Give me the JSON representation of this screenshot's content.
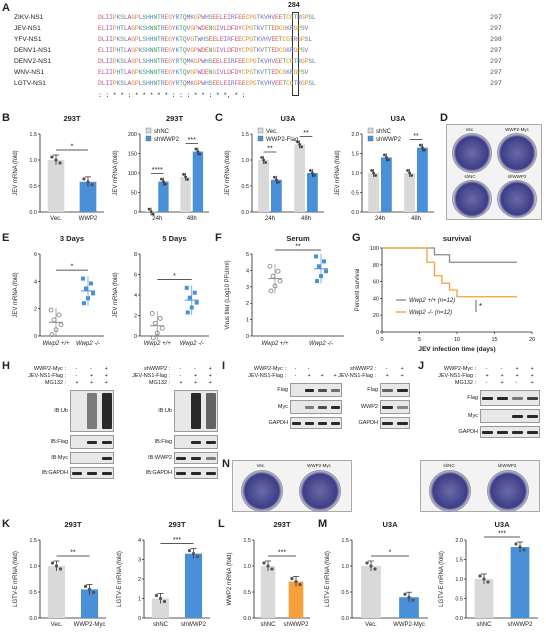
{
  "panel_letters": {
    "A": "A",
    "B": "B",
    "C": "C",
    "D": "D",
    "E": "E",
    "F": "F",
    "G": "G",
    "H": "H",
    "I": "I",
    "J": "J",
    "K": "K",
    "L": "L",
    "M": "M",
    "N": "N"
  },
  "alignment": {
    "position_label": "284",
    "rows": [
      {
        "name": "ZIKV-NS1",
        "seq": "DLIIPKSLAGPLSHHNTREGYRTQMKGPWHSEELEIRFEECPGTKVHVEETCGTRGPSL",
        "num": "297"
      },
      {
        "name": "JEV-NS1",
        "seq": "ELIIPHTLAGPKSHNNTREGYKTQVGPWDENGIVLDFDYCPGTKVTTEDCGKRGPSV",
        "num": "297"
      },
      {
        "name": "YFV-NS1",
        "seq": "DLIIPKSLAGPLSHHNTREGYKTQVGTWHSEELEIRFEECPGTKVHVEETCGTRGPSL",
        "num": "298"
      },
      {
        "name": "DENV1-NS1",
        "seq": "ELIIPHTLAGPKSHNNTREGYKTQVGPWDENGIVLDFDYCPGTKVTTEDCGKRGPSV",
        "num": "297"
      },
      {
        "name": "DENV2-NS1",
        "seq": "DLIIPKSLAGPLSHHNTREGYRTQMKGPWHSEELEIRFEECPGTKVHVEETCGTRGPSL",
        "num": "297"
      },
      {
        "name": "WNV-NS1",
        "seq": "ELIIPHTLAGPKSHNNTREGYKTQVGPWDENGIVLDFDYCPGTKVTTEDCGKRGPSV",
        "num": "297"
      },
      {
        "name": "LGTV-NS1",
        "seq": "DLIIPKSLAGPLSHHNTREGYRTQMKGPWHSEELEIRFEECPGTKVHVEETCGTRGPSL",
        "num": "297"
      }
    ],
    "conservation": ": : * *  : *   *  *    *  *  : :  : *  * : *      *,  * :"
  },
  "colors": {
    "vec": "#d9d9d9",
    "wwp2": "#4a90d9",
    "orange": "#f5a03a",
    "gray_line": "#8a8a8a"
  },
  "charts": {
    "B1": {
      "title": "293T",
      "ylabel": "JEV mRNA (fold)",
      "categories": [
        "Vec.",
        "WWP2"
      ],
      "yticks": [
        "0.0",
        "0.5",
        "1.0",
        "1.5"
      ],
      "sig": "*"
    },
    "B2": {
      "title": "293T",
      "ylabel": "JEV mRNA (fold)",
      "categories": [
        "24h",
        "48h"
      ],
      "yticks": [
        "0",
        "50",
        "100",
        "150",
        "200"
      ],
      "legend": [
        "shNC",
        "shWWP2"
      ],
      "sig": [
        "****",
        "***"
      ]
    },
    "C1": {
      "title": "U3A",
      "ylabel": "JEV mRNA (fold)",
      "categories": [
        "24h",
        "48h"
      ],
      "yticks": [
        "0.0",
        "0.5",
        "1.0",
        "1.5"
      ],
      "legend": [
        "Vec.",
        "WWP2-Flag"
      ],
      "sig": [
        "**",
        "**"
      ]
    },
    "C2": {
      "title": "U3A",
      "ylabel": "JEV mRNA (fold)",
      "categories": [
        "24h",
        "48h"
      ],
      "yticks": [
        "0.0",
        "0.5",
        "1.0",
        "1.5",
        "2.0"
      ],
      "legend": [
        "shNC",
        "shWWP2"
      ],
      "sig": [
        "**"
      ]
    },
    "E1": {
      "title": "3 Days",
      "ylabel": "JEV mRNA (fold)",
      "categories": [
        "Wwp2 +/+",
        "Wwp2 -/-"
      ],
      "yticks": [
        "0",
        "2",
        "4",
        "6"
      ],
      "sig": "*"
    },
    "E2": {
      "title": "5 Days",
      "ylabel": "JEV mRNA (fold)",
      "categories": [
        "Wwp2 +/+",
        "Wwp2 -/-"
      ],
      "yticks": [
        "0",
        "2",
        "4",
        "6",
        "8"
      ],
      "sig": "*"
    },
    "F": {
      "title": "Serum",
      "ylabel": "Virus titer (Log10 PFU/ml)",
      "categories": [
        "Wwp2 +/+",
        "Wwp2 -/-"
      ],
      "yticks": [
        "0",
        "1",
        "2",
        "3",
        "4",
        "5"
      ],
      "sig": "**"
    },
    "G": {
      "title": "survival",
      "ylabel": "Percent survival",
      "xlabel": "JEV infection time (days)",
      "yticks": [
        "0",
        "20",
        "40",
        "60",
        "80",
        "100"
      ],
      "xticks": [
        "0",
        "5",
        "10",
        "15",
        "20"
      ],
      "legend": [
        "Wwp2 +/+ (n=12)",
        "Wwp2 -/- (n=12)"
      ],
      "sig": "*"
    },
    "K1": {
      "title": "293T",
      "ylabel": "LGTV-E mRNA (fold)",
      "categories": [
        "Vec.",
        "WWP2-Myc"
      ],
      "yticks": [
        "0.0",
        "0.5",
        "1.0",
        "1.5"
      ],
      "sig": "**"
    },
    "K2": {
      "title": "293T",
      "ylabel": "LGTV-E mRNA (fold)",
      "categories": [
        "shNC",
        "shWWP2"
      ],
      "yticks": [
        "0",
        "1",
        "2",
        "3",
        "4"
      ],
      "sig": "***"
    },
    "L": {
      "title": "293T",
      "ylabel": "WWP2 mRNA (fold)",
      "categories": [
        "shNC",
        "shWWP2"
      ],
      "yticks": [
        "0.0",
        "0.5",
        "1.0",
        "1.5"
      ],
      "sig": "***"
    },
    "M1": {
      "title": "U3A",
      "ylabel": "LGTV-E mRNA (fold)",
      "categories": [
        "Vec.",
        "WWP2-Myc"
      ],
      "yticks": [
        "0.0",
        "0.5",
        "1.0",
        "1.5"
      ],
      "sig": "*"
    },
    "M2": {
      "title": "U3A",
      "ylabel": "LGTV-E mRNA (fold)",
      "categories": [
        "shNC",
        "shWWP2"
      ],
      "yticks": [
        "0.0",
        "0.5",
        "1.0",
        "1.5",
        "2.0"
      ],
      "sig": "***"
    }
  },
  "chart_data": [
    {
      "type": "bar",
      "title": "293T",
      "ylabel": "JEV mRNA (fold)",
      "categories": [
        "Vec.",
        "WWP2"
      ],
      "values": [
        1.0,
        0.58
      ],
      "ylim": [
        0,
        1.5
      ]
    },
    {
      "type": "bar",
      "title": "293T",
      "ylabel": "JEV mRNA (fold)",
      "categories": [
        "24h",
        "48h"
      ],
      "series": [
        {
          "name": "shNC",
          "values": [
            1,
            90
          ]
        },
        {
          "name": "shWWP2",
          "values": [
            78,
            155
          ]
        }
      ],
      "ylim": [
        0,
        200
      ]
    },
    {
      "type": "bar",
      "title": "U3A",
      "ylabel": "JEV mRNA (fold)",
      "categories": [
        "24h",
        "48h"
      ],
      "series": [
        {
          "name": "Vec.",
          "values": [
            1.0,
            1.3
          ]
        },
        {
          "name": "WWP2-Flag",
          "values": [
            0.62,
            0.75
          ]
        }
      ],
      "ylim": [
        0,
        1.5
      ]
    },
    {
      "type": "bar",
      "title": "U3A",
      "ylabel": "JEV mRNA (fold)",
      "categories": [
        "24h",
        "48h"
      ],
      "series": [
        {
          "name": "shNC",
          "values": [
            1.0,
            1.0
          ]
        },
        {
          "name": "shWWP2",
          "values": [
            1.4,
            1.65
          ]
        }
      ],
      "ylim": [
        0,
        2.0
      ]
    },
    {
      "type": "scatter",
      "title": "3 Days",
      "ylabel": "JEV mRNA (fold)",
      "categories": [
        "Wwp2 +/+",
        "Wwp2 -/-"
      ],
      "values": [
        1.0,
        3.3
      ],
      "ylim": [
        0,
        6
      ]
    },
    {
      "type": "scatter",
      "title": "5 Days",
      "ylabel": "JEV mRNA (fold)",
      "categories": [
        "Wwp2 +/+",
        "Wwp2 -/-"
      ],
      "values": [
        1.0,
        3.5
      ],
      "ylim": [
        0,
        8
      ]
    },
    {
      "type": "scatter",
      "title": "Serum",
      "ylabel": "Virus titer (Log10 PFU/ml)",
      "categories": [
        "Wwp2 +/+",
        "Wwp2 -/-"
      ],
      "values": [
        3.5,
        4.1
      ],
      "ylim": [
        0,
        5
      ]
    },
    {
      "type": "line",
      "title": "survival",
      "ylabel": "Percent survival",
      "xlabel": "JEV infection time (days)",
      "series": [
        {
          "name": "Wwp2 +/+ (n=12)",
          "x": [
            0,
            7,
            9,
            18
          ],
          "values": [
            100,
            92,
            83,
            83
          ]
        },
        {
          "name": "Wwp2 -/- (n=12)",
          "x": [
            0,
            6,
            7,
            8,
            9,
            10,
            18
          ],
          "values": [
            100,
            83,
            67,
            58,
            50,
            42,
            42
          ]
        }
      ],
      "xlim": [
        0,
        20
      ],
      "ylim": [
        0,
        100
      ]
    },
    {
      "type": "bar",
      "title": "293T",
      "ylabel": "LGTV-E mRNA (fold)",
      "categories": [
        "Vec.",
        "WWP2-Myc"
      ],
      "values": [
        1.0,
        0.55
      ],
      "ylim": [
        0,
        1.5
      ]
    },
    {
      "type": "bar",
      "title": "293T",
      "ylabel": "LGTV-E mRNA (fold)",
      "categories": [
        "shNC",
        "shWWP2"
      ],
      "values": [
        1.0,
        3.3
      ],
      "ylim": [
        0,
        4
      ]
    },
    {
      "type": "bar",
      "title": "293T",
      "ylabel": "WWP2 mRNA (fold)",
      "categories": [
        "shNC",
        "shWWP2"
      ],
      "values": [
        1.0,
        0.7
      ],
      "ylim": [
        0,
        1.5
      ]
    },
    {
      "type": "bar",
      "title": "U3A",
      "ylabel": "LGTV-E mRNA (fold)",
      "categories": [
        "Vec.",
        "WWP2-Myc"
      ],
      "values": [
        1.0,
        0.4
      ],
      "ylim": [
        0,
        1.5
      ]
    },
    {
      "type": "bar",
      "title": "U3A",
      "ylabel": "LGTV-E mRNA (fold)",
      "categories": [
        "shNC",
        "shWWP2"
      ],
      "values": [
        1.0,
        1.82
      ],
      "ylim": [
        0,
        2.0
      ]
    }
  ],
  "blots": {
    "H1": {
      "rows": [
        "WWP2-Myc :",
        "JEV-NS1-Flag :",
        "MG132 :"
      ],
      "marks": [
        [
          "-",
          "-",
          "+"
        ],
        [
          "-",
          "+",
          "+"
        ],
        [
          "+",
          "+",
          "+"
        ]
      ],
      "side": [
        "IP:FLAG",
        "WCL"
      ],
      "bands": [
        "IB:Ub",
        "IB:Flag",
        "IB:Myc",
        "IB:GAPDH"
      ],
      "mw": [
        "180",
        "130",
        "100",
        "70",
        "55",
        "55",
        "100",
        "35"
      ]
    },
    "H2": {
      "rows": [
        "shWWP2 :",
        "JEV-NS1-Flag :",
        "MG132 :"
      ],
      "marks": [
        [
          "-",
          "-",
          "+"
        ],
        [
          "-",
          "+",
          "+"
        ],
        [
          "+",
          "+",
          "+"
        ]
      ],
      "side": [
        "IP:FLAG",
        "WCL"
      ],
      "bands": [
        "IB:Ub",
        "IB:Flag",
        "IB:WWP2",
        "IB:GAPDH"
      ],
      "mw": [
        "180",
        "130",
        "100",
        "70",
        "55",
        "55",
        "100",
        "35"
      ]
    },
    "I1": {
      "rows": [
        "WWP2-Myc :",
        "JEV-NS1-Flag :"
      ],
      "marks": [
        [
          "-",
          "-",
          "",
          ""
        ],
        [
          "-",
          "+",
          "+",
          "+"
        ]
      ],
      "bands": [
        "Flag",
        "Myc",
        "GAPDH"
      ],
      "mw": [
        "55",
        "100",
        "35"
      ]
    },
    "I2": {
      "rows": [
        "shWWP2 :",
        "JEV-NS1-Flag :"
      ],
      "marks": [
        [
          "-",
          "+"
        ],
        [
          "+",
          "+"
        ]
      ],
      "bands": [
        "Flag",
        "WWP2",
        "GAPDH"
      ],
      "mw": [
        "55",
        "100",
        "35"
      ]
    },
    "J": {
      "rows": [
        "WWP2-Myc :",
        "JEV-NS1-Flag :",
        "MG132 :"
      ],
      "marks": [
        [
          "-",
          "-",
          "+",
          "+"
        ],
        [
          "+",
          "+",
          "+",
          "+"
        ],
        [
          "-",
          "+",
          "-",
          "+"
        ]
      ],
      "bands": [
        "Flag",
        "Myc",
        "GAPDH"
      ],
      "mw": [
        "55",
        "130",
        "100",
        "35"
      ]
    }
  },
  "plates": {
    "D": [
      "Vec.",
      "WWP2-Myc",
      "shNC",
      "shWWP2"
    ],
    "N1": [
      "Vec.",
      "WWP2-Myc"
    ],
    "N2": [
      "shNC",
      "shWWP2"
    ]
  }
}
